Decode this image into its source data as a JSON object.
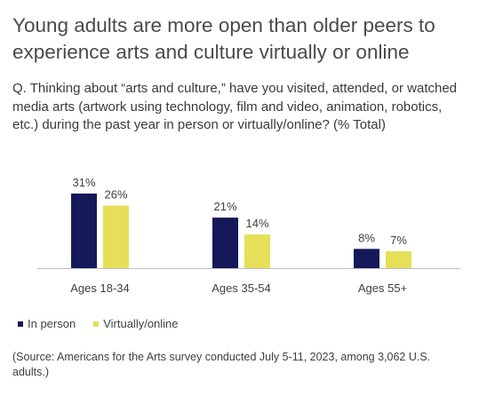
{
  "title": "Young adults are more open than older peers to experience arts and culture virtually or online",
  "question": "Q. Thinking about “arts and culture,” have you visited, attended, or watched media arts (artwork using technology, film and video, animation, robotics, etc.) during the past year in person or virtually/online? (% Total)",
  "source": "(Source: Americans for the Arts survey conducted July 5-11, 2023, among 3,062 U.S. adults.)",
  "chart_data": {
    "type": "bar",
    "categories": [
      "Ages 18-34",
      "Ages 35-54",
      "Ages 55+"
    ],
    "series": [
      {
        "name": "In person",
        "values": [
          31,
          21,
          8
        ],
        "labels": [
          "31%",
          "21%",
          "8%"
        ],
        "color": "#15195a"
      },
      {
        "name": "Virtually/online",
        "values": [
          26,
          14,
          7
        ],
        "labels": [
          "26%",
          "14%",
          "7%"
        ],
        "color": "#e6df58"
      }
    ],
    "ylim": [
      0,
      35
    ],
    "grid": false,
    "legend": "bottom-left"
  }
}
